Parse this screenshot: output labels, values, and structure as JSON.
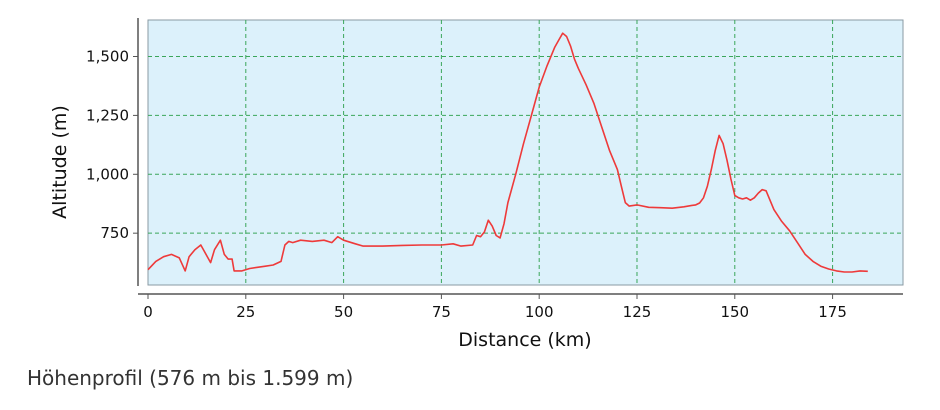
{
  "caption": "Höhenprofil (576 m bis 1.599 m)",
  "colors": {
    "plot_bg": "#dcf1fb",
    "grid": "#3aa65a",
    "line": "#ee3a3a",
    "axis": "#555555"
  },
  "chart_data": {
    "type": "line",
    "title": "",
    "xlabel": "Distance (km)",
    "ylabel": "Altitude (m)",
    "xlim": [
      0,
      193
    ],
    "ylim": [
      530,
      1655
    ],
    "x_ticks": [
      0,
      25,
      50,
      75,
      100,
      125,
      150,
      175
    ],
    "x_tick_labels": [
      "0",
      "25",
      "50",
      "75",
      "100",
      "125",
      "150",
      "175"
    ],
    "y_ticks": [
      750,
      1000,
      1250,
      1500
    ],
    "y_tick_labels": [
      "750",
      "1,000",
      "1,250",
      "1,500"
    ],
    "grid": true,
    "series": [
      {
        "x": [
          0,
          2,
          4,
          6,
          8,
          9.5,
          10.5,
          12,
          13.5,
          15,
          16,
          17,
          18.5,
          19.5,
          20.5,
          21.5,
          22,
          24,
          26,
          28,
          30,
          32,
          34,
          35,
          36,
          37,
          39,
          42,
          45,
          47,
          48.5,
          50,
          53,
          55,
          60,
          65,
          70,
          75,
          78,
          80,
          83,
          84,
          85,
          86,
          87,
          88,
          89,
          90,
          91,
          92,
          94,
          96,
          98,
          100,
          102,
          104,
          105,
          106,
          107,
          108,
          109,
          110,
          112,
          114,
          116,
          118,
          120,
          121,
          122,
          123,
          125,
          128,
          131,
          134,
          137,
          139,
          140,
          141,
          142,
          143,
          144,
          145,
          146,
          147,
          148,
          149,
          150,
          151,
          152,
          153,
          154,
          155,
          156,
          157,
          158,
          159,
          160,
          162,
          164,
          166,
          168,
          170,
          172,
          174,
          176,
          178,
          180,
          182,
          184
        ],
        "y": [
          595,
          630,
          650,
          660,
          645,
          590,
          650,
          680,
          700,
          655,
          625,
          680,
          720,
          660,
          640,
          640,
          590,
          590,
          600,
          605,
          610,
          615,
          630,
          700,
          715,
          710,
          720,
          715,
          720,
          710,
          735,
          720,
          705,
          695,
          695,
          698,
          700,
          700,
          705,
          695,
          700,
          740,
          735,
          755,
          805,
          780,
          740,
          730,
          790,
          880,
          1000,
          1130,
          1250,
          1370,
          1460,
          1540,
          1570,
          1599,
          1585,
          1545,
          1490,
          1450,
          1380,
          1300,
          1200,
          1100,
          1020,
          950,
          880,
          865,
          870,
          860,
          858,
          856,
          862,
          868,
          870,
          878,
          900,
          950,
          1020,
          1100,
          1165,
          1130,
          1060,
          980,
          910,
          900,
          895,
          900,
          890,
          900,
          920,
          935,
          930,
          890,
          850,
          800,
          760,
          710,
          660,
          630,
          610,
          598,
          590,
          585,
          585,
          590,
          588
        ]
      }
    ]
  }
}
